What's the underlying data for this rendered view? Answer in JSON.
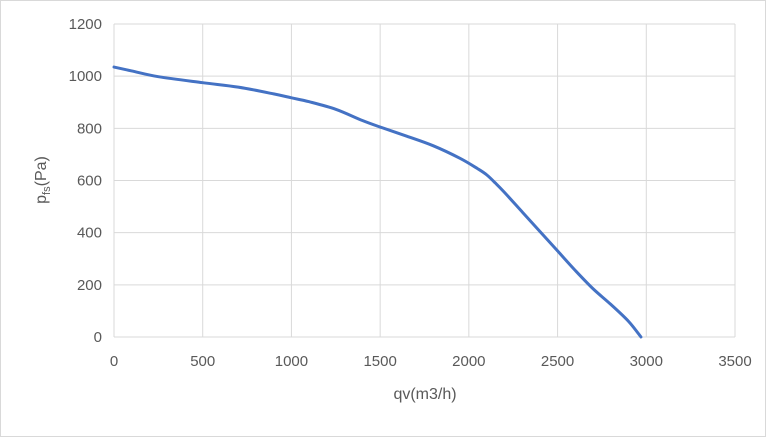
{
  "chart_data": {
    "type": "line",
    "title": "",
    "xlabel": "qv(m3/h)",
    "ylabel_main": "p",
    "ylabel_sub": "fs",
    "ylabel_unit": "(Pa)",
    "xlim": [
      0,
      3500
    ],
    "ylim": [
      0,
      1200
    ],
    "x_ticks": [
      0,
      500,
      1000,
      1500,
      2000,
      2500,
      3000,
      3500
    ],
    "y_ticks": [
      0,
      200,
      400,
      600,
      800,
      1000,
      1200
    ],
    "grid": true,
    "legend": "none",
    "series": [
      {
        "color": "#4472c4",
        "x": [
          0,
          100,
          250,
          500,
          700,
          900,
          1000,
          1100,
          1250,
          1400,
          1500,
          1650,
          1800,
          1950,
          2050,
          2100,
          2150,
          2200,
          2300,
          2400,
          2500,
          2600,
          2700,
          2800,
          2900,
          2970
        ],
        "y": [
          1035,
          1020,
          998,
          975,
          958,
          932,
          917,
          902,
          873,
          830,
          805,
          770,
          733,
          685,
          645,
          622,
          590,
          555,
          480,
          405,
          330,
          255,
          185,
          125,
          60,
          0
        ]
      }
    ]
  }
}
